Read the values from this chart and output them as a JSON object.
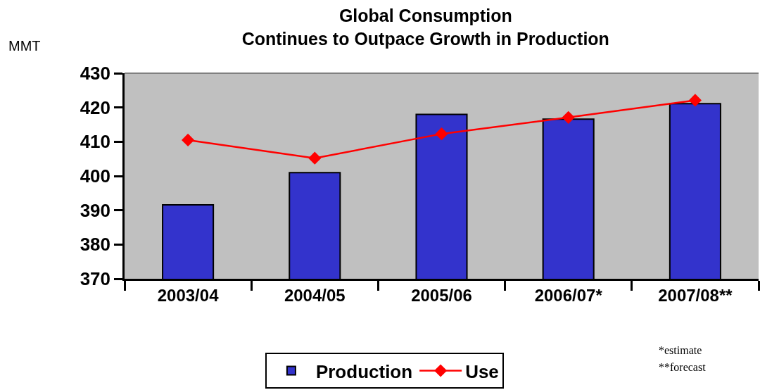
{
  "chart_data": {
    "type": "bar",
    "title": "Global Consumption\nContinues to Outpace Growth in Production",
    "ylabel": "MMT",
    "categories": [
      "2003/04",
      "2004/05",
      "2005/06",
      "2006/07*",
      "2007/08**"
    ],
    "series": [
      {
        "name": "Production",
        "color": "#3333cc",
        "values": [
          391.6,
          401.0,
          418.0,
          416.6,
          421.1
        ]
      },
      {
        "name": "Use",
        "type": "line",
        "color": "#ff0000",
        "marker": "diamond",
        "values": [
          410.5,
          405.2,
          412.3,
          417.1,
          422.1
        ]
      }
    ],
    "ylim": [
      370,
      430
    ],
    "yticks": [
      370,
      380,
      390,
      400,
      410,
      420,
      430
    ],
    "grid": false,
    "legend": "bottom",
    "annotations": [
      "*estimate",
      "**forecast"
    ]
  }
}
